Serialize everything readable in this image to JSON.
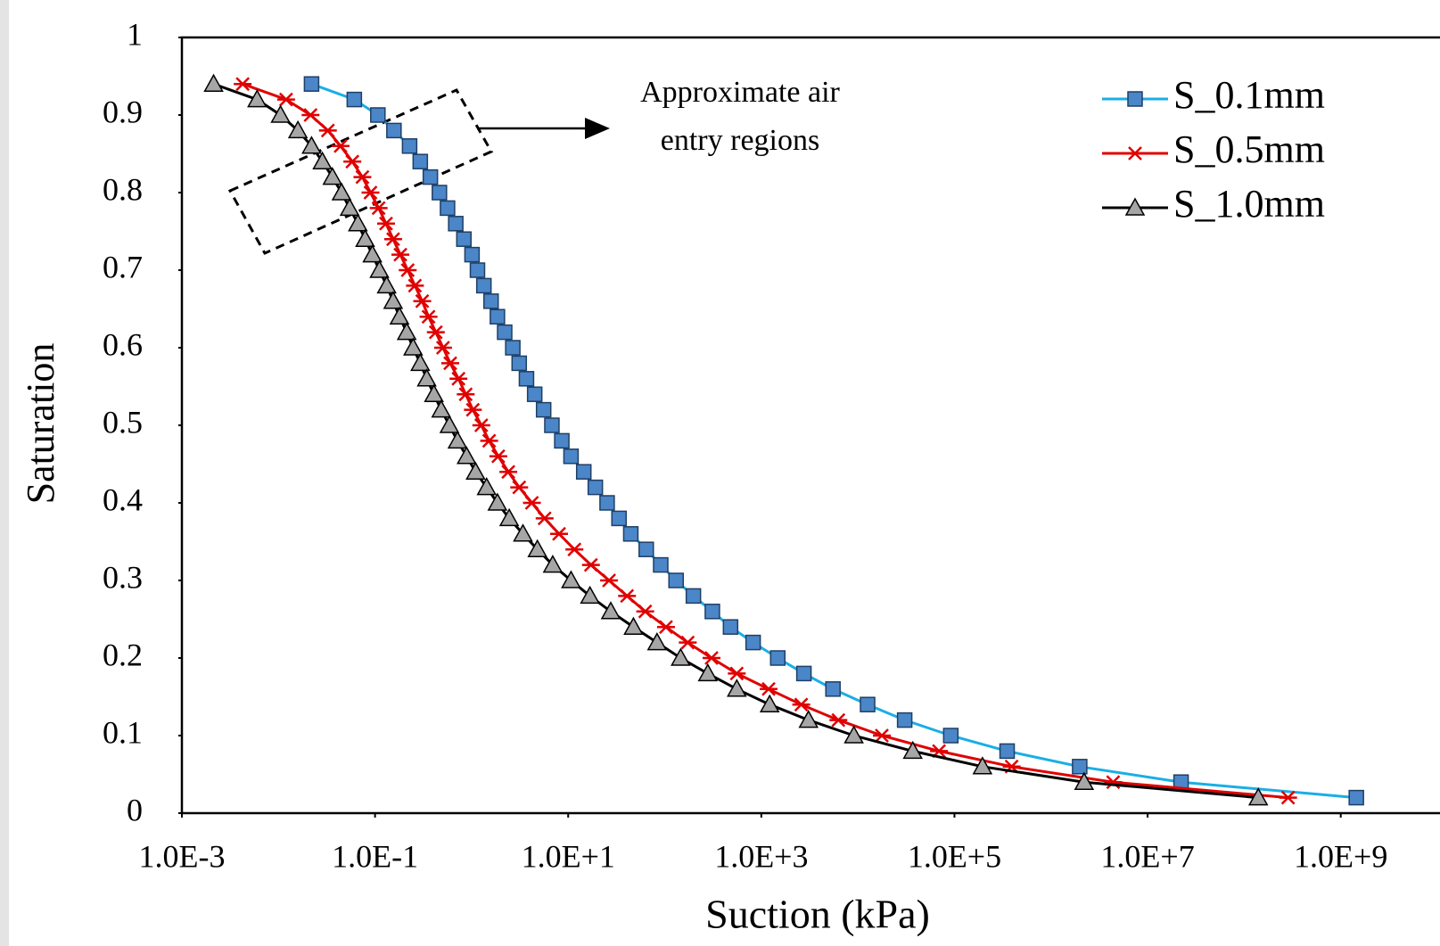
{
  "chart_data": {
    "type": "line",
    "x_label": "Suction (kPa)",
    "y_label": "Saturation",
    "annotation": [
      "Approximate air",
      "entry regions"
    ],
    "xscale": "log",
    "grid": false,
    "legend": "top right",
    "xlim": [
      0.001,
      10000000000
    ],
    "ylim": [
      0,
      1
    ],
    "xticks": [
      {
        "value": 0.001,
        "label": "1.0E-3"
      },
      {
        "value": 0.1,
        "label": "1.0E-1"
      },
      {
        "value": 10,
        "label": "1.0E+1"
      },
      {
        "value": 1000,
        "label": "1.0E+3"
      },
      {
        "value": 100000,
        "label": "1.0E+5"
      },
      {
        "value": 10000000,
        "label": "1.0E+7"
      },
      {
        "value": 1000000000,
        "label": "1.0E+9"
      }
    ],
    "yticks": [
      0,
      0.1,
      0.2,
      0.3,
      0.4,
      0.5,
      0.6,
      0.7,
      0.8,
      0.9,
      1
    ],
    "series": [
      {
        "name": "S_0.1mm",
        "color": "#1aaee6",
        "marker": "square",
        "marker_color": "#4a86c8",
        "x": [
          0.022,
          0.061,
          0.107,
          0.157,
          0.228,
          0.294,
          0.374,
          0.464,
          0.563,
          0.685,
          0.832,
          1.01,
          1.15,
          1.34,
          1.59,
          1.85,
          2.2,
          2.67,
          3.11,
          3.7,
          4.5,
          5.57,
          6.78,
          8.59,
          10.7,
          14.5,
          19.1,
          25.3,
          33.6,
          44.5,
          64.3,
          90.8,
          131,
          198,
          311,
          480,
          822,
          1480,
          2760,
          5520,
          12600,
          30500,
          91600,
          351000,
          1980000,
          22200000,
          1450000000
        ],
        "values": [
          0.94,
          0.92,
          0.9,
          0.88,
          0.86,
          0.84,
          0.82,
          0.8,
          0.78,
          0.76,
          0.74,
          0.72,
          0.7,
          0.68,
          0.66,
          0.64,
          0.62,
          0.6,
          0.58,
          0.56,
          0.54,
          0.52,
          0.5,
          0.48,
          0.46,
          0.44,
          0.42,
          0.4,
          0.38,
          0.36,
          0.34,
          0.32,
          0.3,
          0.28,
          0.26,
          0.24,
          0.22,
          0.2,
          0.18,
          0.16,
          0.14,
          0.12,
          0.1,
          0.08,
          0.06,
          0.04,
          0.02
        ]
      },
      {
        "name": "S_0.5mm",
        "color": "#e00000",
        "marker": "asterisk",
        "marker_color": "#e00000",
        "x": [
          0.00426,
          0.012,
          0.0215,
          0.0325,
          0.044,
          0.0582,
          0.074,
          0.0897,
          0.109,
          0.13,
          0.154,
          0.183,
          0.218,
          0.259,
          0.308,
          0.358,
          0.426,
          0.506,
          0.601,
          0.731,
          0.869,
          1.03,
          1.26,
          1.52,
          1.89,
          2.4,
          3.11,
          4.21,
          5.7,
          8.05,
          11.6,
          17.2,
          26.5,
          40.7,
          62.8,
          103,
          173,
          305,
          557,
          1190,
          2590,
          6280,
          17700,
          69200,
          391000,
          4400000,
          285000000
        ],
        "values": [
          0.94,
          0.92,
          0.9,
          0.88,
          0.86,
          0.84,
          0.82,
          0.8,
          0.78,
          0.76,
          0.74,
          0.72,
          0.7,
          0.68,
          0.66,
          0.64,
          0.62,
          0.6,
          0.58,
          0.56,
          0.54,
          0.52,
          0.5,
          0.48,
          0.46,
          0.44,
          0.42,
          0.4,
          0.38,
          0.36,
          0.34,
          0.32,
          0.3,
          0.28,
          0.26,
          0.24,
          0.22,
          0.2,
          0.18,
          0.16,
          0.14,
          0.12,
          0.1,
          0.08,
          0.06,
          0.04,
          0.02
        ]
      },
      {
        "name": "S_1.0mm",
        "color": "#000000",
        "marker": "triangle",
        "marker_color": "#a6a6a6",
        "x": [
          0.00213,
          0.00601,
          0.0105,
          0.0159,
          0.022,
          0.0285,
          0.0362,
          0.045,
          0.0546,
          0.0664,
          0.0789,
          0.0938,
          0.111,
          0.132,
          0.154,
          0.179,
          0.213,
          0.248,
          0.294,
          0.343,
          0.407,
          0.484,
          0.589,
          0.714,
          0.887,
          1.1,
          1.43,
          1.85,
          2.45,
          3.4,
          4.8,
          6.92,
          10.7,
          16.8,
          27.6,
          47.4,
          83.2,
          146,
          279,
          557,
          1220,
          3080,
          9080,
          37000,
          195000,
          2200000,
          140000000
        ],
        "values": [
          0.94,
          0.92,
          0.9,
          0.88,
          0.86,
          0.84,
          0.82,
          0.8,
          0.78,
          0.76,
          0.74,
          0.72,
          0.7,
          0.68,
          0.66,
          0.64,
          0.62,
          0.6,
          0.58,
          0.56,
          0.54,
          0.52,
          0.5,
          0.48,
          0.46,
          0.44,
          0.42,
          0.4,
          0.38,
          0.36,
          0.34,
          0.32,
          0.3,
          0.28,
          0.26,
          0.24,
          0.22,
          0.2,
          0.18,
          0.16,
          0.14,
          0.12,
          0.1,
          0.08,
          0.06,
          0.04,
          0.02
        ]
      }
    ]
  }
}
